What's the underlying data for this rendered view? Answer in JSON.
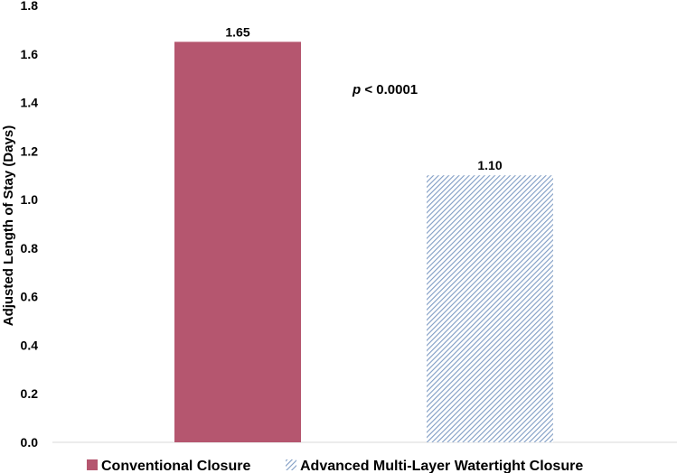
{
  "chart_data": {
    "type": "bar",
    "categories": [
      "Conventional Closure",
      "Advanced Multi-Layer Watertight Closure"
    ],
    "values": [
      1.65,
      1.1
    ],
    "value_labels": [
      "1.65",
      "1.10"
    ],
    "ylabel": "Adjusted Length of Stay (Days)",
    "ylim": [
      0,
      1.8
    ],
    "yticks": [
      "0.0",
      "0.2",
      "0.4",
      "0.6",
      "0.8",
      "1.0",
      "1.2",
      "1.4",
      "1.6",
      "1.8"
    ],
    "grid": false,
    "legend_position": "bottom",
    "annotation": {
      "italic": "p",
      "text": " < 0.0001"
    },
    "colors": {
      "conventional": "#b5566f",
      "advanced_hatch": "#7f9cc4",
      "advanced_bg": "#ffffff"
    }
  }
}
